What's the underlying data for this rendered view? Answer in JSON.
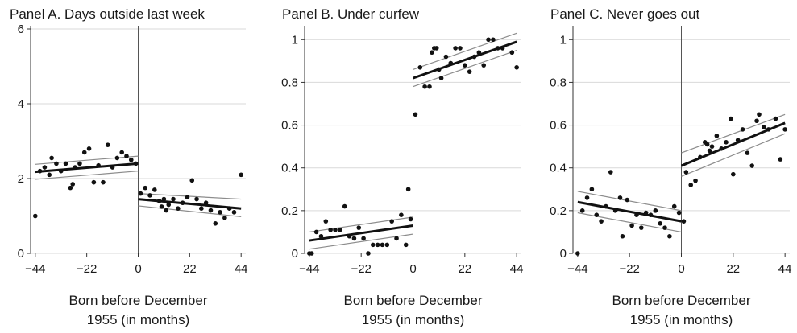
{
  "chart_data": [
    {
      "type": "scatter",
      "title": "Panel A. Days outside last week",
      "xlabel_lines": [
        "Born before December",
        "1955 (in months)"
      ],
      "ylabel": "",
      "xlim": [
        -46,
        46
      ],
      "ylim": [
        0,
        6
      ],
      "xticks": [
        -44,
        -22,
        0,
        22,
        44
      ],
      "yticks": [
        0,
        2,
        4,
        6
      ],
      "ytick_labels": [
        "0",
        "2",
        "4",
        "6"
      ],
      "cutoff": 0,
      "grid": true,
      "points": [
        [
          -44,
          1.0
        ],
        [
          -42,
          2.2
        ],
        [
          -40,
          2.3
        ],
        [
          -38,
          2.1
        ],
        [
          -37,
          2.55
        ],
        [
          -35,
          2.4
        ],
        [
          -33,
          2.2
        ],
        [
          -31,
          2.4
        ],
        [
          -29,
          1.75
        ],
        [
          -28,
          1.85
        ],
        [
          -27,
          2.3
        ],
        [
          -25,
          2.4
        ],
        [
          -23,
          2.7
        ],
        [
          -21,
          2.8
        ],
        [
          -19,
          1.9
        ],
        [
          -17,
          2.35
        ],
        [
          -15,
          1.9
        ],
        [
          -13,
          2.9
        ],
        [
          -11,
          2.3
        ],
        [
          -9,
          2.55
        ],
        [
          -7,
          2.7
        ],
        [
          -5,
          2.6
        ],
        [
          -3,
          2.5
        ],
        [
          -1,
          2.4
        ],
        [
          1,
          1.6
        ],
        [
          3,
          1.75
        ],
        [
          5,
          1.55
        ],
        [
          7,
          1.7
        ],
        [
          9,
          1.4
        ],
        [
          10,
          1.25
        ],
        [
          11,
          1.45
        ],
        [
          12,
          1.15
        ],
        [
          13,
          1.3
        ],
        [
          15,
          1.45
        ],
        [
          17,
          1.2
        ],
        [
          19,
          1.35
        ],
        [
          21,
          1.5
        ],
        [
          23,
          1.95
        ],
        [
          25,
          1.45
        ],
        [
          27,
          1.2
        ],
        [
          29,
          1.35
        ],
        [
          31,
          1.15
        ],
        [
          33,
          0.8
        ],
        [
          35,
          1.1
        ],
        [
          37,
          0.95
        ],
        [
          39,
          1.2
        ],
        [
          41,
          1.1
        ],
        [
          44,
          2.1
        ]
      ],
      "fit": [
        {
          "x": [
            -44,
            0
          ],
          "y": [
            2.18,
            2.4
          ],
          "upper": [
            2.38,
            2.6
          ],
          "lower": [
            1.98,
            2.2
          ]
        },
        {
          "x": [
            0,
            44
          ],
          "y": [
            1.45,
            1.2
          ],
          "upper": [
            1.6,
            1.45
          ],
          "lower": [
            1.27,
            0.98
          ]
        }
      ]
    },
    {
      "type": "scatter",
      "title": "Panel B. Under curfew",
      "xlabel_lines": [
        "Born before December",
        "1955 (in months)"
      ],
      "ylabel": "",
      "xlim": [
        -46,
        46
      ],
      "ylim": [
        0,
        1.05
      ],
      "xticks": [
        -44,
        -22,
        0,
        22,
        44
      ],
      "yticks": [
        0,
        0.2,
        0.4,
        0.6,
        0.8,
        1
      ],
      "ytick_labels": [
        "0",
        "0.2",
        "0.4",
        "0.6",
        "0.8",
        "1"
      ],
      "cutoff": 0,
      "grid": true,
      "points": [
        [
          -44,
          0.0
        ],
        [
          -43,
          0.0
        ],
        [
          -41,
          0.1
        ],
        [
          -39,
          0.08
        ],
        [
          -37,
          0.15
        ],
        [
          -35,
          0.11
        ],
        [
          -33,
          0.11
        ],
        [
          -31,
          0.11
        ],
        [
          -29,
          0.22
        ],
        [
          -27,
          0.08
        ],
        [
          -25,
          0.07
        ],
        [
          -23,
          0.12
        ],
        [
          -21,
          0.07
        ],
        [
          -19,
          0.0
        ],
        [
          -17,
          0.04
        ],
        [
          -15,
          0.04
        ],
        [
          -13,
          0.04
        ],
        [
          -11,
          0.04
        ],
        [
          -9,
          0.15
        ],
        [
          -7,
          0.07
        ],
        [
          -5,
          0.18
        ],
        [
          -3,
          0.04
        ],
        [
          -2,
          0.3
        ],
        [
          -1,
          0.16
        ],
        [
          1,
          0.65
        ],
        [
          3,
          0.87
        ],
        [
          5,
          0.78
        ],
        [
          7,
          0.78
        ],
        [
          8,
          0.94
        ],
        [
          9,
          0.96
        ],
        [
          10,
          0.96
        ],
        [
          11,
          0.86
        ],
        [
          12,
          0.82
        ],
        [
          14,
          0.92
        ],
        [
          16,
          0.89
        ],
        [
          18,
          0.96
        ],
        [
          20,
          0.96
        ],
        [
          22,
          0.88
        ],
        [
          24,
          0.85
        ],
        [
          26,
          0.92
        ],
        [
          28,
          0.94
        ],
        [
          30,
          0.88
        ],
        [
          32,
          1.0
        ],
        [
          34,
          1.0
        ],
        [
          36,
          0.96
        ],
        [
          38,
          0.96
        ],
        [
          42,
          0.94
        ],
        [
          44,
          0.87
        ]
      ],
      "fit": [
        {
          "x": [
            -44,
            0
          ],
          "y": [
            0.06,
            0.13
          ],
          "upper": [
            0.1,
            0.17
          ],
          "lower": [
            0.02,
            0.09
          ]
        },
        {
          "x": [
            0,
            44
          ],
          "y": [
            0.82,
            0.99
          ],
          "upper": [
            0.86,
            1.03
          ],
          "lower": [
            0.78,
            0.95
          ]
        }
      ]
    },
    {
      "type": "scatter",
      "title": "Panel C. Never goes out",
      "xlabel_lines": [
        "Born before December",
        "1955 (in months)"
      ],
      "ylabel": "",
      "xlim": [
        -46,
        46
      ],
      "ylim": [
        0,
        1.05
      ],
      "xticks": [
        -44,
        -22,
        0,
        22,
        44
      ],
      "yticks": [
        0,
        0.2,
        0.4,
        0.6,
        0.8,
        1
      ],
      "ytick_labels": [
        "0",
        "0.2",
        "0.4",
        "0.6",
        "0.8",
        "1"
      ],
      "cutoff": 0,
      "grid": true,
      "points": [
        [
          -44,
          0.0
        ],
        [
          -42,
          0.2
        ],
        [
          -40,
          0.26
        ],
        [
          -38,
          0.3
        ],
        [
          -36,
          0.18
        ],
        [
          -34,
          0.15
        ],
        [
          -32,
          0.22
        ],
        [
          -30,
          0.38
        ],
        [
          -28,
          0.2
        ],
        [
          -26,
          0.26
        ],
        [
          -25,
          0.08
        ],
        [
          -23,
          0.25
        ],
        [
          -21,
          0.13
        ],
        [
          -19,
          0.18
        ],
        [
          -17,
          0.12
        ],
        [
          -15,
          0.19
        ],
        [
          -13,
          0.18
        ],
        [
          -11,
          0.2
        ],
        [
          -9,
          0.14
        ],
        [
          -7,
          0.12
        ],
        [
          -5,
          0.08
        ],
        [
          -3,
          0.22
        ],
        [
          -1,
          0.19
        ],
        [
          1,
          0.15
        ],
        [
          2,
          0.38
        ],
        [
          4,
          0.32
        ],
        [
          6,
          0.34
        ],
        [
          8,
          0.45
        ],
        [
          10,
          0.52
        ],
        [
          11,
          0.51
        ],
        [
          12,
          0.48
        ],
        [
          13,
          0.5
        ],
        [
          15,
          0.55
        ],
        [
          17,
          0.49
        ],
        [
          19,
          0.52
        ],
        [
          21,
          0.63
        ],
        [
          22,
          0.37
        ],
        [
          24,
          0.53
        ],
        [
          26,
          0.58
        ],
        [
          28,
          0.47
        ],
        [
          30,
          0.41
        ],
        [
          32,
          0.62
        ],
        [
          33,
          0.65
        ],
        [
          35,
          0.59
        ],
        [
          37,
          0.58
        ],
        [
          40,
          0.63
        ],
        [
          42,
          0.44
        ],
        [
          44,
          0.58
        ]
      ],
      "fit": [
        {
          "x": [
            -44,
            0
          ],
          "y": [
            0.24,
            0.15
          ],
          "upper": [
            0.29,
            0.2
          ],
          "lower": [
            0.19,
            0.1
          ]
        },
        {
          "x": [
            0,
            44
          ],
          "y": [
            0.41,
            0.61
          ],
          "upper": [
            0.47,
            0.65
          ],
          "lower": [
            0.36,
            0.56
          ]
        }
      ]
    }
  ]
}
